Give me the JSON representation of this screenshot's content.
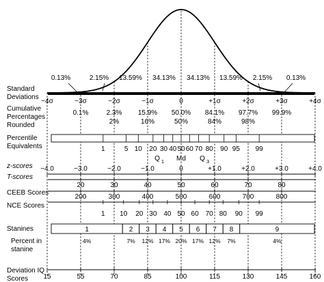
{
  "chart_data": {
    "type": "area",
    "distribution": "normal",
    "band_percentages": [
      "0.13%",
      "2.15%",
      "13.59%",
      "34.13%",
      "34.13%",
      "13.59%",
      "2.15%",
      "0.13%"
    ],
    "rows": {
      "sd": {
        "label": [
          "Standard",
          "Deviations"
        ],
        "ticks": [
          "−4σ",
          "−3σ",
          "−2σ",
          "−1σ",
          "0",
          "+1σ",
          "+2σ",
          "+3σ",
          "+4σ"
        ]
      },
      "cumulative": {
        "label": [
          "Cumulative",
          "Percentages",
          "Rounded"
        ],
        "values": [
          "0.1%",
          "2.3%",
          "15.9%",
          "50.0%",
          "84.1%",
          "97.7%",
          "99.9%"
        ],
        "rounded": [
          "2%",
          "16%",
          "50%",
          "84%",
          "98%"
        ]
      },
      "percentile": {
        "label": [
          "Percentile",
          "Equivalents"
        ],
        "values": [
          "1",
          "5",
          "10",
          "20",
          "30",
          "40",
          "50",
          "60",
          "70",
          "80",
          "90",
          "95",
          "99"
        ],
        "markers": [
          "Q",
          "Md",
          "Q"
        ],
        "marker_subscripts": [
          "1",
          "",
          "3"
        ]
      },
      "z": {
        "label": "z-scores",
        "values": [
          "−4.0",
          "−3.0",
          "−2.0",
          "−1.0",
          "0",
          "+1.0",
          "+2.0",
          "+3.0",
          "+4.0"
        ]
      },
      "t": {
        "label": "T-scores",
        "values": [
          "20",
          "30",
          "40",
          "50",
          "60",
          "70",
          "80"
        ]
      },
      "ceeb": {
        "label": "CEEB Scores",
        "values": [
          "200",
          "300",
          "400",
          "500",
          "600",
          "700",
          "800"
        ]
      },
      "nce": {
        "label": "NCE Scores",
        "values": [
          "1",
          "10",
          "20",
          "30",
          "40",
          "50",
          "60",
          "70",
          "80",
          "90",
          "99"
        ]
      },
      "stanine": {
        "label": "Stanines",
        "values": [
          "1",
          "2",
          "3",
          "4",
          "5",
          "6",
          "7",
          "8",
          "9"
        ],
        "percent_label": [
          "Percent in",
          "stanine"
        ],
        "percents": [
          "4%",
          "7%",
          "12%",
          "17%",
          "20%",
          "17%",
          "12%",
          "7%",
          "4%"
        ]
      },
      "iq": {
        "label": [
          "Deviation IQ",
          "Scores"
        ],
        "values": [
          "15",
          "55",
          "70",
          "85",
          "100",
          "115",
          "130",
          "145",
          "160"
        ]
      }
    }
  }
}
